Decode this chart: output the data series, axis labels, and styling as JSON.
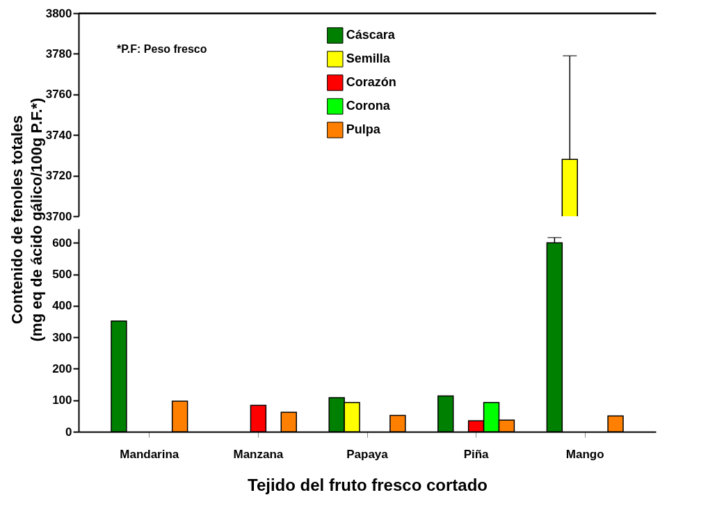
{
  "chart_data": [
    {
      "type": "bar",
      "categories": [
        null,
        null,
        null,
        null,
        null
      ],
      "ylim": [
        3700,
        3800
      ],
      "yticks": [
        3700,
        3720,
        3740,
        3760,
        3780,
        3800
      ],
      "tick_labels": "y",
      "legend": "top right",
      "annotations": [
        "*P.F: Peso fresco"
      ],
      "series": [
        {
          "name": "Cáscara",
          "color": "#008000",
          "values": [
            null,
            null,
            null,
            null,
            null
          ]
        },
        {
          "name": "Semilla",
          "color": "#ffff00",
          "values": [
            null,
            null,
            null,
            null,
            3728
          ],
          "errors": [
            null,
            null,
            null,
            null,
            [
              3728,
              3779
            ]
          ]
        },
        {
          "name": "Corazón",
          "color": "#ff0000",
          "values": [
            null,
            null,
            null,
            null,
            null
          ]
        },
        {
          "name": "Corona",
          "color": "#00ff00",
          "values": [
            null,
            null,
            null,
            null,
            null
          ]
        },
        {
          "name": "Pulpa",
          "color": "#ff8000",
          "values": [
            null,
            null,
            null,
            null,
            null
          ]
        }
      ]
    },
    {
      "type": "bar",
      "categories": [
        "Mandarina",
        "Manzana",
        "Papaya",
        "Piña",
        "Mango"
      ],
      "ylim": [
        0,
        645
      ],
      "yticks": [
        0,
        100,
        200,
        300,
        400,
        500,
        600
      ],
      "xlabel": "Tejido del fruto fresco cortado",
      "ylabel": "Contenido de fenoles totales\n(mg eq de ácido gálico/100g P.F.*)",
      "series": [
        {
          "color": "#008000",
          "values": [
            352,
            null,
            108,
            114,
            600
          ],
          "errors": [
            null,
            null,
            null,
            null,
            [
              600,
              617
            ]
          ]
        },
        {
          "color": "#ffff00",
          "values": [
            null,
            null,
            93,
            null,
            null
          ]
        },
        {
          "color": "#ff0000",
          "values": [
            null,
            84,
            null,
            35,
            null
          ]
        },
        {
          "color": "#00ff00",
          "values": [
            null,
            null,
            null,
            93,
            null
          ]
        },
        {
          "color": "#ff8000",
          "values": [
            97,
            62,
            52,
            37,
            50
          ]
        }
      ]
    }
  ]
}
